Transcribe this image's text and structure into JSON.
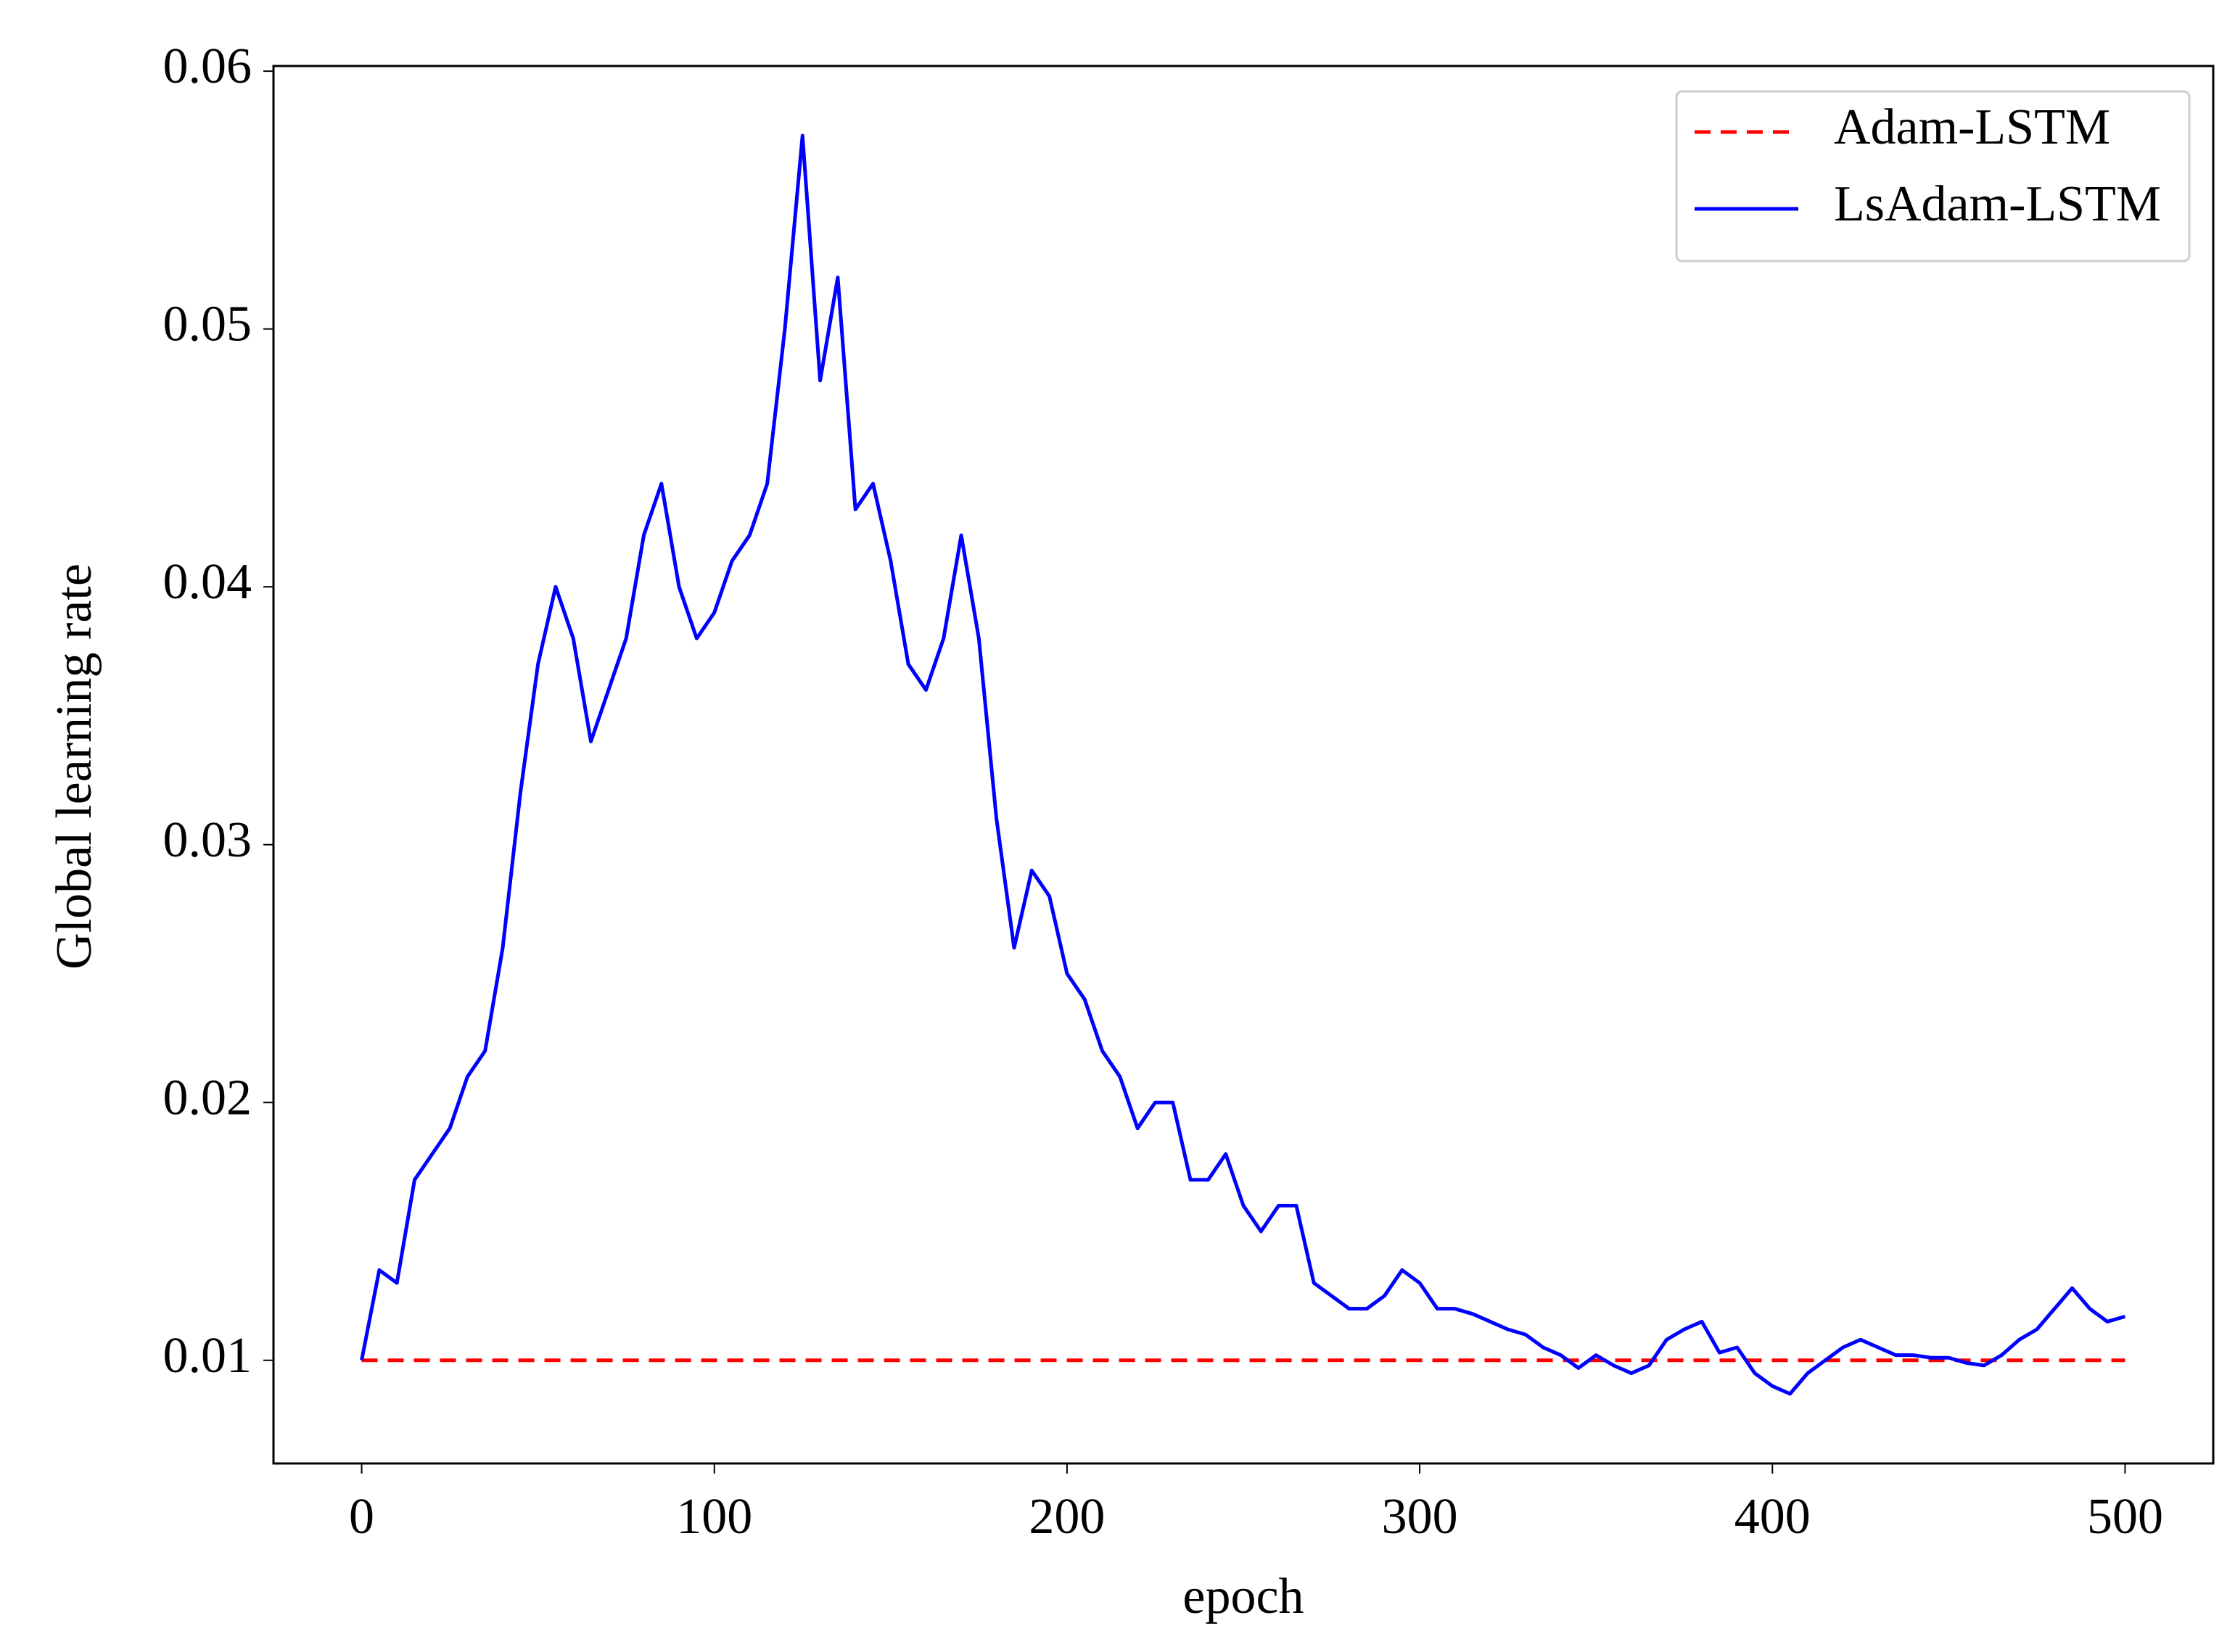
{
  "chart_data": {
    "type": "line",
    "x_label": "epoch",
    "y_label": "Global learning rate",
    "xlim": [
      -25,
      525
    ],
    "xticks": [
      0,
      100,
      200,
      300,
      400,
      500
    ],
    "ylim": [
      0.006,
      0.0602
    ],
    "yticks": [
      0.01,
      0.02,
      0.03,
      0.04,
      0.05,
      0.06
    ],
    "legend": "upper right",
    "series": [
      {
        "name": "Adam-LSTM",
        "color": "#ff0000",
        "dash": true,
        "x": [
          0,
          500
        ],
        "values": [
          0.01,
          0.01
        ]
      },
      {
        "name": "LsAdam-LSTM",
        "color": "#0000ff",
        "dash": false,
        "x": [
          0,
          5,
          10,
          15,
          20,
          25,
          30,
          35,
          40,
          45,
          50,
          55,
          60,
          65,
          70,
          75,
          80,
          85,
          90,
          95,
          100,
          105,
          110,
          115,
          120,
          125,
          130,
          135,
          140,
          145,
          150,
          155,
          160,
          165,
          170,
          175,
          180,
          185,
          190,
          195,
          200,
          205,
          210,
          215,
          220,
          225,
          230,
          235,
          240,
          245,
          250,
          255,
          260,
          265,
          270,
          275,
          280,
          285,
          290,
          295,
          300,
          305,
          310,
          315,
          320,
          325,
          330,
          335,
          340,
          345,
          350,
          355,
          360,
          365,
          370,
          375,
          380,
          385,
          390,
          395,
          400,
          405,
          410,
          415,
          420,
          425,
          430,
          435,
          440,
          445,
          450,
          455,
          460,
          465,
          470,
          475,
          480,
          485,
          490,
          495,
          500
        ],
        "values": [
          0.01,
          0.0135,
          0.013,
          0.017,
          0.018,
          0.019,
          0.021,
          0.022,
          0.026,
          0.032,
          0.037,
          0.04,
          0.038,
          0.034,
          0.036,
          0.038,
          0.042,
          0.044,
          0.04,
          0.038,
          0.039,
          0.041,
          0.042,
          0.044,
          0.05,
          0.0575,
          0.048,
          0.052,
          0.043,
          0.044,
          0.041,
          0.037,
          0.036,
          0.038,
          0.042,
          0.038,
          0.031,
          0.026,
          0.029,
          0.028,
          0.025,
          0.024,
          0.022,
          0.021,
          0.019,
          0.02,
          0.02,
          0.017,
          0.017,
          0.018,
          0.016,
          0.015,
          0.016,
          0.016,
          0.013,
          0.0125,
          0.012,
          0.012,
          0.0125,
          0.0135,
          0.013,
          0.012,
          0.012,
          0.0118,
          0.0115,
          0.0112,
          0.011,
          0.0105,
          0.0102,
          0.0097,
          0.0102,
          0.0098,
          0.0095,
          0.0098,
          0.0108,
          0.0112,
          0.0115,
          0.0103,
          0.0105,
          0.0095,
          0.009,
          0.0087,
          0.0095,
          0.01,
          0.0105,
          0.0108,
          0.0105,
          0.0102,
          0.0102,
          0.0101,
          0.0101,
          0.0099,
          0.0098,
          0.0102,
          0.0108,
          0.0112,
          0.012,
          0.0128,
          0.012,
          0.0115,
          0.0117
        ]
      }
    ]
  }
}
